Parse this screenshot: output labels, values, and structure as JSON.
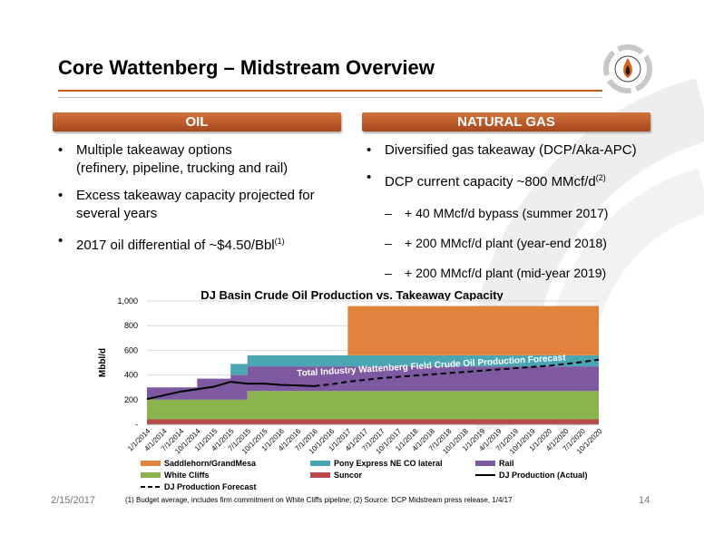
{
  "header": {
    "title": "Core Wattenberg – Midstream Overview"
  },
  "sections": {
    "oil": {
      "heading": "OIL",
      "bullets": [
        "Multiple takeaway options",
        "(refinery, pipeline, trucking and rail)",
        "Excess takeaway capacity projected for",
        "several years",
        "2017 oil differential of ~$4.50/Bbl"
      ],
      "bullet_sup": "(1)"
    },
    "gas": {
      "heading": "NATURAL GAS",
      "bullets": [
        "Diversified gas takeaway (DCP/Aka-APC)",
        "DCP current capacity ~800 MMcf/d"
      ],
      "bullet_sup": "(2)",
      "subbullets": [
        "+ 40 MMcf/d bypass (summer 2017)",
        "+ 200 MMcf/d plant (year-end 2018)",
        "+ 200 MMcf/d plant (mid-year 2019)"
      ]
    }
  },
  "footer": {
    "date": "2/15/2017",
    "note": "(1)  Budget average, includes firm commitment on White Cliffs pipeline;  (2)  Source: DCP Midstream press release, 1/4/17",
    "page": "14"
  },
  "colors": {
    "accent": "#c85a1a",
    "saddlehorn": "#e2833d",
    "pony_express": "#4ba6b4",
    "rail": "#7e59a2",
    "white_cliffs": "#8cb44e",
    "suncor": "#bb4949"
  },
  "chart_data": {
    "type": "area",
    "title": "DJ Basin Crude Oil Production vs. Takeaway Capacity",
    "xlabel": "",
    "ylabel": "Mbbl/d",
    "ylim": [
      0,
      1000
    ],
    "yticks": [
      "-",
      "200",
      "400",
      "600",
      "800",
      "1,000"
    ],
    "categories": [
      "1/1/2014",
      "4/1/2014",
      "7/1/2014",
      "10/1/2014",
      "1/1/2015",
      "4/1/2015",
      "7/1/2015",
      "10/1/2015",
      "1/1/2016",
      "4/1/2016",
      "7/1/2016",
      "10/1/2016",
      "1/1/2017",
      "4/1/2017",
      "7/1/2017",
      "10/1/2017",
      "1/1/2018",
      "4/1/2018",
      "7/1/2018",
      "10/1/2018",
      "1/1/2019",
      "4/1/2019",
      "7/1/2019",
      "10/1/2019",
      "1/1/2020",
      "4/1/2020",
      "7/1/2020",
      "10/1/2020"
    ],
    "stack_order": [
      "Suncor",
      "White Cliffs",
      "Rail",
      "Pony Express NE CO lateral",
      "Saddlehorn/GrandMesa"
    ],
    "series": [
      {
        "name": "Suncor",
        "kind": "area",
        "values": [
          40,
          40,
          40,
          40,
          40,
          40,
          40,
          40,
          40,
          40,
          40,
          40,
          40,
          40,
          40,
          40,
          40,
          40,
          40,
          40,
          40,
          40,
          40,
          40,
          40,
          40,
          40,
          40
        ]
      },
      {
        "name": "White Cliffs",
        "kind": "area",
        "values": [
          160,
          160,
          160,
          160,
          160,
          160,
          230,
          230,
          230,
          230,
          230,
          230,
          230,
          230,
          230,
          230,
          230,
          230,
          230,
          230,
          230,
          230,
          230,
          230,
          230,
          230,
          230,
          230
        ]
      },
      {
        "name": "Rail",
        "kind": "area",
        "values": [
          100,
          100,
          100,
          170,
          170,
          200,
          200,
          200,
          200,
          200,
          200,
          200,
          200,
          200,
          200,
          200,
          200,
          200,
          200,
          200,
          200,
          200,
          200,
          200,
          200,
          200,
          200,
          200
        ]
      },
      {
        "name": "Pony Express NE CO lateral",
        "kind": "area",
        "values": [
          0,
          0,
          0,
          0,
          0,
          90,
          90,
          90,
          90,
          90,
          90,
          90,
          90,
          90,
          90,
          90,
          90,
          90,
          90,
          90,
          90,
          90,
          90,
          90,
          90,
          90,
          90,
          90
        ]
      },
      {
        "name": "Saddlehorn/GrandMesa",
        "kind": "area",
        "values": [
          0,
          0,
          0,
          0,
          0,
          0,
          0,
          0,
          0,
          0,
          0,
          0,
          400,
          400,
          400,
          400,
          400,
          400,
          400,
          400,
          400,
          400,
          400,
          400,
          400,
          400,
          400,
          400
        ]
      },
      {
        "name": "DJ Production (Actual)",
        "kind": "line",
        "values": [
          205,
          235,
          265,
          285,
          305,
          345,
          330,
          330,
          320,
          315,
          310,
          null,
          null,
          null,
          null,
          null,
          null,
          null,
          null,
          null,
          null,
          null,
          null,
          null,
          null,
          null,
          null,
          null
        ]
      },
      {
        "name": "DJ Production Forecast",
        "kind": "dashed",
        "values": [
          null,
          null,
          null,
          null,
          null,
          null,
          null,
          null,
          null,
          null,
          310,
          325,
          345,
          360,
          375,
          385,
          395,
          405,
          415,
          425,
          435,
          445,
          455,
          465,
          475,
          490,
          505,
          525
        ]
      }
    ],
    "annotation": "Total Industry Wattenberg Field Crude Oil Production Forecast",
    "legend": [
      "Saddlehorn/GrandMesa",
      "Pony Express NE CO lateral",
      "Rail",
      "White Cliffs",
      "Suncor",
      "DJ Production (Actual)",
      "DJ Production Forecast"
    ],
    "legend_position": "bottom",
    "grid": true
  }
}
